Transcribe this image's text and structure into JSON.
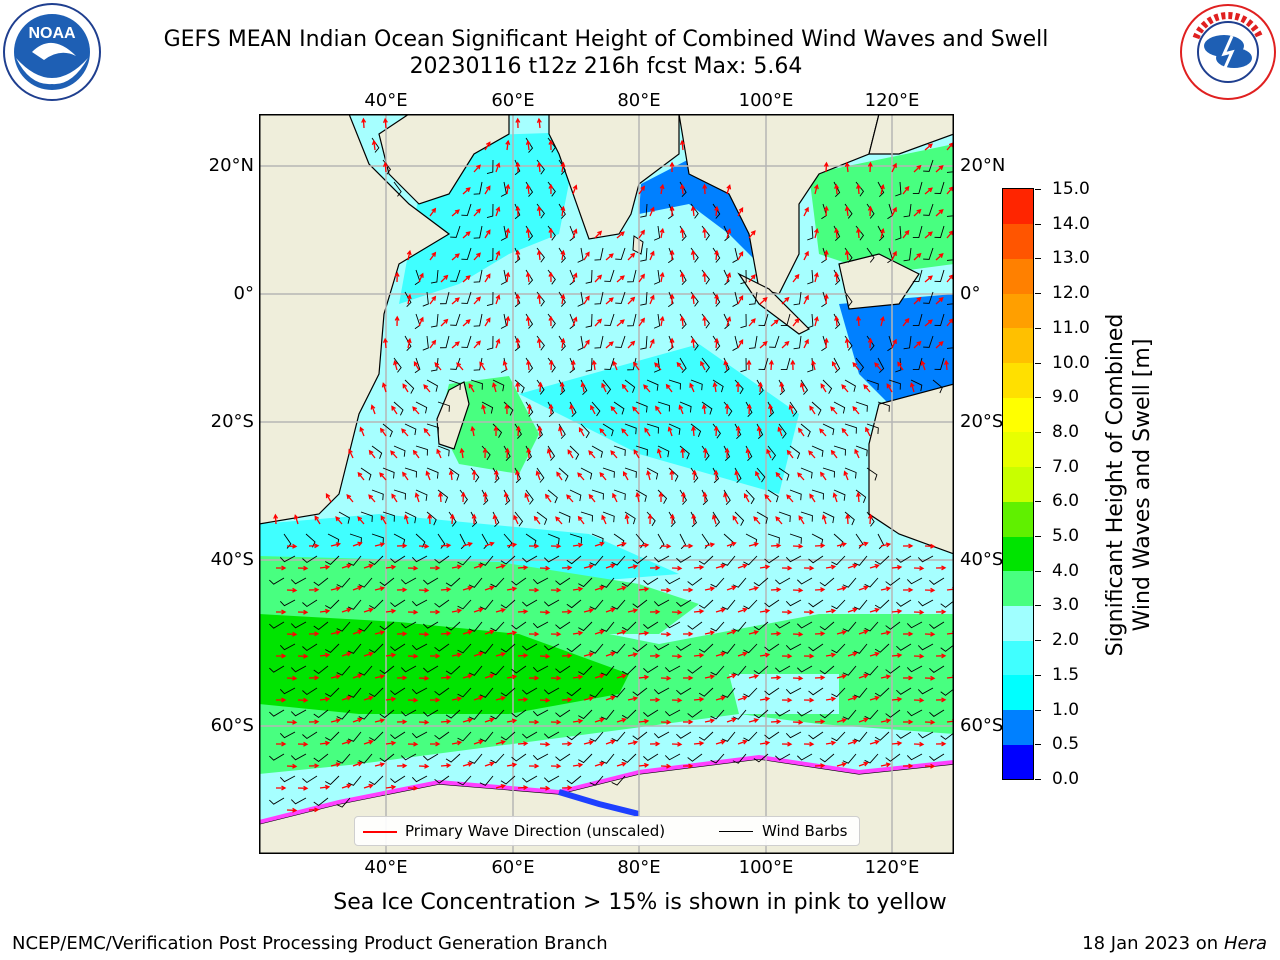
{
  "title": {
    "line1": "GEFS MEAN Indian Ocean Significant Height of Combined Wind Waves and Swell",
    "line2": "20230116 t12z 216h fcst   Max: 5.64"
  },
  "map": {
    "lon_labels": [
      "40°E",
      "60°E",
      "80°E",
      "100°E",
      "120°E"
    ],
    "lat_labels_left": [
      "20°N",
      "0°",
      "20°S",
      "40°S",
      "60°S"
    ],
    "lat_labels_right": [
      "20°N",
      "0°",
      "20°S",
      "40°S",
      "60°S"
    ],
    "colors": {
      "land": "#efeedb",
      "ocean_low": "#a6ffff",
      "wave_arrow": "#ff0000",
      "barb": "#000000"
    }
  },
  "colorbar": {
    "title": "Significant Height of Combined Wind Waves and Swell [m]",
    "levels": [
      "0.0",
      "0.5",
      "1.0",
      "1.5",
      "2.0",
      "3.0",
      "4.0",
      "5.0",
      "6.0",
      "7.0",
      "8.0",
      "9.0",
      "10.0",
      "11.0",
      "12.0",
      "13.0",
      "14.0",
      "15.0"
    ],
    "colors": [
      "#0000ff",
      "#0080ff",
      "#00ffff",
      "#40ffff",
      "#a0ffff",
      "#48ff80",
      "#00e400",
      "#60f000",
      "#c8ff00",
      "#e8ff00",
      "#ffff00",
      "#ffe000",
      "#ffc000",
      "#ff9f00",
      "#ff8000",
      "#ff5500",
      "#ff2500"
    ]
  },
  "legend": {
    "wave_label": "Primary Wave Direction (unscaled)",
    "wind_label": "Wind Barbs"
  },
  "footnote": "Sea Ice Concentration > 15% is shown in pink to yellow",
  "credit_left": "NCEP/EMC/Verification Post Processing Product Generation Branch",
  "credit_right_date": "18 Jan 2023 on",
  "credit_right_host": "Hera",
  "logos": {
    "left": "noaa-logo",
    "right": "nws-logo"
  }
}
